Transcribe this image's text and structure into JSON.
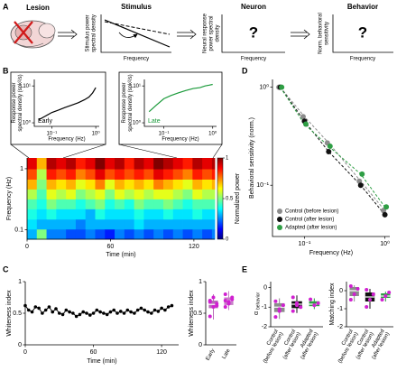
{
  "panel_labels": [
    "A",
    "B",
    "C",
    "D",
    "E"
  ],
  "schematic": {
    "titles": [
      "Lesion",
      "Stimulus",
      "Neuron",
      "Behavior"
    ],
    "ylabels": [
      [
        "Stimulus power",
        "spectral density"
      ],
      [
        "Neural response",
        "power spectral",
        "density"
      ],
      [
        "Norm. behavioral",
        "sensitivity"
      ]
    ],
    "xlabel": "Frequency",
    "unknown": "?"
  },
  "chart_data": [
    {
      "type": "line",
      "label": "Early",
      "color": "#000000",
      "log": true,
      "xlabel": "Frequency (Hz)",
      "ylabel": [
        "Response power",
        "spectral density (spk²/s)"
      ],
      "x": [
        0.05,
        0.07,
        0.1,
        0.14,
        0.2,
        0.28,
        0.4,
        0.55,
        0.7,
        0.85,
        1
      ],
      "values": [
        1.2,
        1.5,
        1.9,
        2.2,
        2.6,
        3.0,
        3.5,
        4.2,
        5.0,
        6.5,
        9
      ],
      "xlim": [
        0.04,
        1.2
      ],
      "ylim": [
        0.8,
        15
      ],
      "xticks": [
        {
          "value": 0.1,
          "label": "10⁻¹"
        },
        {
          "value": 1,
          "label": "10⁰"
        }
      ],
      "yticks": [
        {
          "value": 1,
          "label": "10⁰"
        },
        {
          "value": 10,
          "label": "10¹"
        }
      ]
    },
    {
      "type": "line",
      "label": "Late",
      "color": "#1a9a3a",
      "log": true,
      "xlabel": "Frequency (Hz)",
      "ylabel": [
        "Response power",
        "spectral density (spk²/s)"
      ],
      "x": [
        0.05,
        0.07,
        0.1,
        0.14,
        0.2,
        0.28,
        0.4,
        0.55,
        0.7,
        0.85,
        1
      ],
      "values": [
        2,
        3,
        4.5,
        5.5,
        6.5,
        7.5,
        8.5,
        9,
        10,
        10.5,
        11
      ],
      "xlim": [
        0.04,
        1.2
      ],
      "ylim": [
        0.8,
        15
      ],
      "xticks": [
        {
          "value": 0.1,
          "label": "10⁻¹"
        },
        {
          "value": 1,
          "label": "10⁰"
        }
      ],
      "yticks": [
        {
          "value": 1,
          "label": "10⁰"
        },
        {
          "value": 10,
          "label": "10¹"
        }
      ]
    },
    {
      "type": "heatmap",
      "log": true,
      "xlabel": "Time (min)",
      "ylabel": "Frequency (Hz)",
      "colorbar_label": "Normalized power",
      "x": [
        0,
        7,
        14,
        21,
        28,
        35,
        42,
        49,
        56,
        63,
        70,
        77,
        84,
        91,
        98,
        105,
        112,
        119,
        126,
        133
      ],
      "y": [
        1.2,
        0.8,
        0.55,
        0.38,
        0.26,
        0.18,
        0.12,
        0.085
      ],
      "values": [
        [
          0.9,
          0.7,
          0.95,
          0.9,
          0.95,
          0.85,
          0.9,
          1,
          0.9,
          0.95,
          0.85,
          0.95,
          0.9,
          1,
          0.95,
          0.9,
          0.85,
          0.95,
          0.9,
          0.95
        ],
        [
          0.8,
          0.55,
          0.85,
          0.8,
          0.85,
          0.75,
          0.8,
          0.9,
          0.8,
          0.85,
          0.8,
          0.85,
          0.8,
          0.9,
          0.85,
          0.8,
          0.75,
          0.85,
          0.8,
          0.85
        ],
        [
          0.7,
          0.5,
          0.7,
          0.65,
          0.7,
          0.6,
          0.65,
          0.75,
          0.6,
          0.7,
          0.65,
          0.7,
          0.65,
          0.75,
          0.7,
          0.65,
          0.6,
          0.7,
          0.65,
          0.7
        ],
        [
          0.55,
          0.45,
          0.6,
          0.55,
          0.6,
          0.5,
          0.55,
          0.6,
          0.5,
          0.6,
          0.55,
          0.6,
          0.55,
          0.6,
          0.6,
          0.55,
          0.5,
          0.6,
          0.55,
          0.55
        ],
        [
          0.45,
          0.4,
          0.5,
          0.45,
          0.45,
          0.4,
          0.45,
          0.5,
          0.4,
          0.45,
          0.4,
          0.5,
          0.45,
          0.45,
          0.5,
          0.45,
          0.4,
          0.45,
          0.45,
          0.45
        ],
        [
          0.4,
          0.35,
          0.4,
          0.35,
          0.35,
          0.35,
          0.3,
          0.4,
          0.35,
          0.35,
          0.35,
          0.4,
          0.35,
          0.35,
          0.4,
          0.35,
          0.35,
          0.4,
          0.35,
          0.35
        ],
        [
          0.35,
          0.3,
          0.3,
          0.3,
          0.3,
          0.25,
          0.3,
          0.3,
          0.3,
          0.3,
          0.3,
          0.35,
          0.3,
          0.3,
          0.3,
          0.3,
          0.3,
          0.3,
          0.3,
          0.3
        ],
        [
          0.3,
          0.5,
          0.25,
          0.25,
          0.2,
          0.2,
          0.25,
          0.2,
          0.15,
          0.25,
          0.2,
          0.25,
          0.2,
          0.25,
          0.2,
          0.25,
          0.2,
          0.25,
          0.2,
          0.25
        ]
      ],
      "xlim": [
        0,
        135
      ],
      "ylim": [
        0.07,
        1.5
      ],
      "xticks": [
        0,
        60,
        120
      ],
      "yticks": [
        1,
        0.1
      ],
      "zlim": [
        0,
        1
      ],
      "zticks": [
        0,
        0.5,
        1
      ]
    },
    {
      "type": "scatter",
      "log": true,
      "xlabel": "Frequency (Hz)",
      "ylabel": "Behavioral sensitivity (norm.)",
      "legend": "lower left",
      "x": [
        0.05,
        0.1,
        0.2,
        0.5,
        1
      ],
      "series": [
        {
          "name": "Control (before lesion)",
          "color": "#8c8c8c",
          "values": [
            1,
            0.5,
            0.27,
            0.11,
            0.055
          ]
        },
        {
          "name": "Control (after lesion)",
          "color": "#111111",
          "values": [
            1,
            0.45,
            0.22,
            0.1,
            0.05
          ]
        },
        {
          "name": "Adapted (after lesion)",
          "color": "#2e9e44",
          "values": [
            1,
            0.42,
            0.25,
            0.13,
            0.06
          ]
        }
      ],
      "xlim": [
        0.04,
        1.15
      ],
      "ylim": [
        0.03,
        1.2
      ],
      "xticks": [
        {
          "value": 0.1,
          "label": "10⁻¹"
        },
        {
          "value": 1,
          "label": "10⁰"
        }
      ],
      "yticks": [
        {
          "value": 0.1,
          "label": "10⁻¹"
        },
        {
          "value": 1,
          "label": "10⁰"
        }
      ]
    },
    {
      "type": "line",
      "color": "#000000",
      "markers": true,
      "xlabel": "Time (min)",
      "ylabel": "Whiteness index",
      "x": [
        0,
        3,
        6,
        9,
        12,
        15,
        18,
        21,
        24,
        27,
        30,
        33,
        36,
        39,
        42,
        45,
        48,
        51,
        54,
        57,
        60,
        63,
        66,
        69,
        72,
        75,
        78,
        81,
        84,
        87,
        90,
        93,
        96,
        99,
        102,
        105,
        108,
        111,
        114,
        117,
        120,
        123,
        126,
        129
      ],
      "values": [
        0.62,
        0.55,
        0.52,
        0.6,
        0.58,
        0.5,
        0.55,
        0.6,
        0.52,
        0.57,
        0.5,
        0.48,
        0.55,
        0.52,
        0.5,
        0.45,
        0.48,
        0.52,
        0.5,
        0.47,
        0.5,
        0.55,
        0.52,
        0.5,
        0.48,
        0.52,
        0.55,
        0.5,
        0.53,
        0.5,
        0.55,
        0.52,
        0.5,
        0.55,
        0.58,
        0.55,
        0.52,
        0.5,
        0.55,
        0.53,
        0.58,
        0.55,
        0.6,
        0.62
      ],
      "xlim": [
        0,
        135
      ],
      "ylim": [
        0,
        1
      ],
      "xticks": [
        0,
        60,
        120
      ],
      "yticks": [
        0,
        0.5,
        1
      ]
    },
    {
      "type": "box",
      "ylabel": "Whiteness index",
      "categories": [
        "Early",
        "Late"
      ],
      "colors": [
        "#b86ab8",
        "#c77ec7"
      ],
      "point_color": "#d020d0",
      "boxes": [
        {
          "min": 0.4,
          "q1": 0.58,
          "median": 0.64,
          "q3": 0.7,
          "max": 0.8,
          "points": [
            0.45,
            0.6,
            0.65,
            0.7,
            0.75,
            0.62,
            0.68
          ]
        },
        {
          "min": 0.55,
          "q1": 0.63,
          "median": 0.7,
          "q3": 0.75,
          "max": 0.85,
          "points": [
            0.6,
            0.68,
            0.72,
            0.8,
            0.65,
            0.75,
            0.7
          ]
        }
      ],
      "ylim": [
        0,
        1
      ],
      "yticks": [
        0,
        0.5,
        1
      ]
    },
    {
      "type": "box",
      "ylabel": "α",
      "ylabel_sub": "behavior",
      "categories": [
        [
          "Control",
          "(before lesion)"
        ],
        [
          "Control",
          "(after lesion)"
        ],
        [
          "Adapted",
          "(after lesion)"
        ]
      ],
      "colors": [
        "#8c8c8c",
        "#111111",
        "#2e9e44"
      ],
      "point_color": "#d020d0",
      "boxes": [
        {
          "min": -1.6,
          "q1": -1.25,
          "median": -1,
          "q3": -0.8,
          "max": -0.55,
          "points": [
            -1.5,
            -1.1,
            -0.9,
            -0.7,
            -1.2
          ]
        },
        {
          "min": -1.3,
          "q1": -1.05,
          "median": -0.85,
          "q3": -0.7,
          "max": -0.4,
          "points": [
            -0.5,
            -0.8,
            -1,
            -1.2,
            -0.9
          ]
        },
        {
          "min": -1.1,
          "q1": -0.95,
          "median": -0.85,
          "q3": -0.7,
          "max": -0.55,
          "points": [
            -0.6,
            -0.9,
            -0.8
          ]
        }
      ],
      "ylim": [
        -2,
        0.3
      ],
      "yticks": [
        -2,
        -1,
        0
      ]
    },
    {
      "type": "box",
      "ylabel": "Matching index",
      "categories": [
        [
          "Control",
          "(before lesion)"
        ],
        [
          "Control",
          "(after lesion)"
        ],
        [
          "Adapted",
          "(after lesion)"
        ]
      ],
      "colors": [
        "#8c8c8c",
        "#111111",
        "#2e9e44"
      ],
      "point_color": "#d020d0",
      "boxes": [
        {
          "min": -0.6,
          "q1": -0.3,
          "median": 0,
          "q3": 0.2,
          "max": 0.3,
          "points": [
            -0.5,
            -0.2,
            0.1,
            0.25
          ]
        },
        {
          "min": -1,
          "q1": -0.6,
          "median": -0.35,
          "q3": -0.1,
          "max": 0.1,
          "points": [
            -0.9,
            -0.5,
            -0.2,
            0.05
          ]
        },
        {
          "min": -0.6,
          "q1": -0.4,
          "median": -0.3,
          "q3": -0.15,
          "max": -0.05,
          "points": [
            -0.5,
            -0.3,
            -0.1
          ]
        }
      ],
      "ylim": [
        -2,
        0.5
      ],
      "yticks": [
        -2,
        -1,
        0
      ]
    }
  ]
}
